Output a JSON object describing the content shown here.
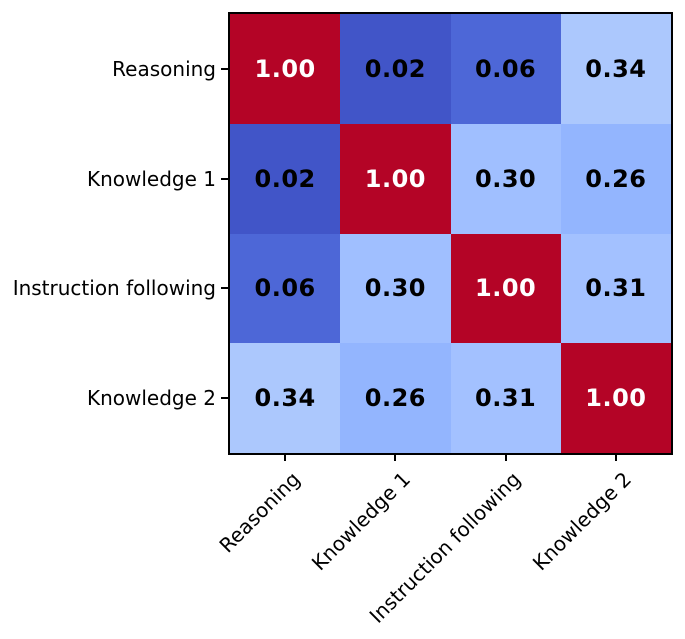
{
  "chart_data": {
    "type": "heatmap",
    "title": "",
    "categories": [
      "Reasoning",
      "Knowledge 1",
      "Instruction following",
      "Knowledge 2"
    ],
    "matrix": [
      [
        1.0,
        0.02,
        0.06,
        0.34
      ],
      [
        0.02,
        1.0,
        0.3,
        0.26
      ],
      [
        0.06,
        0.3,
        1.0,
        0.31
      ],
      [
        0.34,
        0.26,
        0.31,
        1.0
      ]
    ],
    "value_decimals": 2,
    "colormap": "coolwarm",
    "vmin": 0.0,
    "vmax": 1.0,
    "cell_colors": [
      [
        "#b40426",
        "#4155c8",
        "#4d67d7",
        "#acc8fd"
      ],
      [
        "#4155c8",
        "#b40426",
        "#a0bfff",
        "#93b5fe"
      ],
      [
        "#4d67d7",
        "#a0bfff",
        "#b40426",
        "#a3c1ff"
      ],
      [
        "#acc8fd",
        "#93b5fe",
        "#a3c1ff",
        "#b40426"
      ]
    ],
    "diag_text_color": "#ffffff",
    "offdiag_text_color": "#000000",
    "axis_color": "#000000",
    "background": "#ffffff",
    "x_tick_rotation_deg": 45,
    "grid": false,
    "legend_position": "none"
  }
}
